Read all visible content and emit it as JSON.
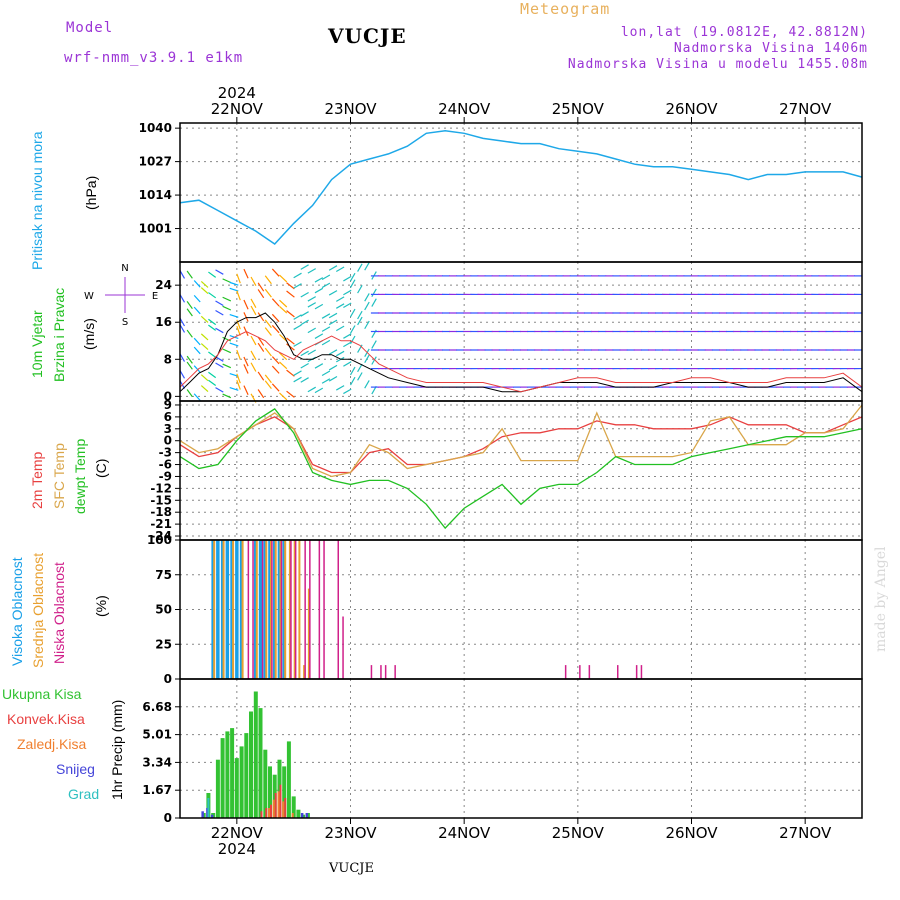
{
  "header": {
    "model_label": "Model",
    "model_name": "wrf-nmm_v3.9.1  e1km",
    "station": "VUCJE",
    "meteogram": "Meteogram",
    "lonlat": "lon,lat (19.0812E, 42.8812N)",
    "elev": "Nadmorska Visina 1406m",
    "elev_model": "Nadmorska Visina u modelu 1455.08m",
    "footer_station": "VUCJE",
    "credit": "made by Angel"
  },
  "dates": [
    "22NOV",
    "23NOV",
    "24NOV",
    "25NOV",
    "26NOV",
    "27NOV"
  ],
  "year": "2024",
  "panels": {
    "pressure": {
      "label": "Pritisak na nivou mora",
      "unit": "(hPa)",
      "ticks": [
        "1040",
        "1027",
        "1014",
        "1001"
      ]
    },
    "wind": {
      "label1": "10m Vjetar",
      "label2": "Brzina i Pravac",
      "unit": "(m/s)",
      "ticks": [
        "24",
        "16",
        "8",
        "0"
      ],
      "compass": [
        "N",
        "W",
        "E",
        "S"
      ]
    },
    "temp": {
      "label1": "2m Temp",
      "label2": "SFC Temp",
      "label3": "dewpt Temp",
      "unit": "(C)",
      "ticks": [
        "9",
        "6",
        "3",
        "0",
        "-3",
        "-6",
        "-9",
        "-12",
        "-15",
        "-18",
        "-21",
        "-24"
      ]
    },
    "cloud": {
      "label1": "Visoka Oblacnost",
      "label2": "Srednja Oblacnost",
      "label3": "Niska Oblacnost",
      "unit": "(%)",
      "ticks": [
        "100",
        "75",
        "50",
        "25",
        "0"
      ]
    },
    "precip": {
      "label": "1hr Precip (mm)",
      "ticks": [
        "6.68",
        "5.01",
        "3.34",
        "1.67",
        "0"
      ],
      "legend": [
        "Ukupna Kisa",
        "Konvek.Kisa",
        "Zaledj.Kisa",
        "Snijeg",
        "Grad"
      ]
    }
  },
  "colors": {
    "pressure": "#1ea8e8",
    "temp2m": "#e84040",
    "sfc": "#d9a64a",
    "dewpt": "#22c022",
    "cloud_high": "#1aa0e8",
    "cloud_mid": "#e8a030",
    "cloud_low": "#d0208a",
    "rain": "#33c233",
    "conv": "#e84040",
    "frz": "#f08030",
    "snow": "#4444d8",
    "grad": "#2ec0c0",
    "purple": "#9b35d6"
  },
  "chart_data": [
    {
      "type": "line",
      "title": "Pritisak na nivou mora",
      "ylabel": "(hPa)",
      "ylim": [
        988,
        1042
      ],
      "x": [
        0,
        4,
        8,
        12,
        16,
        20,
        24,
        28,
        32,
        36,
        40,
        44,
        48,
        52,
        56,
        60,
        64,
        68,
        72,
        76,
        80,
        84,
        88,
        92,
        96,
        100,
        104,
        108,
        112,
        116,
        120,
        124,
        128,
        132,
        136,
        140,
        144
      ],
      "series": [
        {
          "values": [
            1011,
            1012,
            1008,
            1004,
            1000,
            995,
            1003,
            1010,
            1020,
            1026,
            1028,
            1030,
            1033,
            1038,
            1039,
            1038,
            1036,
            1035,
            1034,
            1034,
            1032,
            1031,
            1030,
            1028,
            1026,
            1025,
            1025,
            1024,
            1023,
            1022,
            1020,
            1022,
            1022,
            1023,
            1023,
            1023,
            1021
          ]
        }
      ]
    },
    {
      "type": "line",
      "title": "10m Vjetar Brzina i Pravac",
      "ylabel": "(m/s)",
      "ylim": [
        -1,
        29
      ],
      "x": [
        0,
        2,
        4,
        6,
        8,
        10,
        12,
        14,
        16,
        18,
        20,
        22,
        24,
        26,
        28,
        30,
        32,
        34,
        36,
        38,
        40,
        42,
        44,
        48,
        52,
        56,
        60,
        64,
        68,
        72,
        76,
        80,
        84,
        88,
        92,
        96,
        100,
        104,
        108,
        112,
        116,
        120,
        124,
        128,
        132,
        136,
        140,
        144
      ],
      "series": [
        {
          "name": "speed",
          "values": [
            1,
            3,
            5,
            6,
            9,
            14,
            16,
            17,
            17,
            18,
            16,
            13,
            9,
            8,
            8,
            9,
            9,
            8,
            8,
            7,
            6,
            5,
            4,
            3,
            2,
            2,
            2,
            2,
            1,
            1,
            2,
            3,
            3,
            3,
            2,
            2,
            2,
            3,
            3,
            3,
            3,
            2,
            2,
            3,
            3,
            3,
            4,
            1
          ]
        },
        {
          "name": "gust",
          "values": [
            2,
            4,
            6,
            7,
            9,
            12,
            13,
            14,
            13,
            12,
            10,
            9,
            8,
            10,
            11,
            12,
            13,
            12,
            12,
            11,
            9,
            7,
            6,
            4,
            3,
            3,
            3,
            3,
            2,
            1,
            2,
            3,
            4,
            4,
            3,
            3,
            3,
            3,
            4,
            4,
            3,
            3,
            3,
            4,
            4,
            4,
            5,
            2
          ]
        }
      ]
    },
    {
      "type": "line",
      "title": "2m Temp / SFC Temp / dewpt Temp",
      "ylabel": "(C)",
      "ylim": [
        -25,
        10
      ],
      "x": [
        0,
        4,
        8,
        12,
        16,
        20,
        24,
        28,
        32,
        36,
        40,
        44,
        48,
        52,
        56,
        60,
        64,
        68,
        72,
        76,
        80,
        84,
        88,
        92,
        96,
        100,
        104,
        108,
        112,
        116,
        120,
        124,
        128,
        132,
        136,
        140,
        144
      ],
      "series": [
        {
          "name": "2m Temp",
          "values": [
            -1,
            -4,
            -3,
            1,
            4,
            6,
            3,
            -6,
            -8,
            -8,
            -3,
            -2,
            -6,
            -6,
            -5,
            -4,
            -2,
            1,
            2,
            2,
            3,
            3,
            5,
            4,
            4,
            3,
            3,
            3,
            4,
            6,
            4,
            4,
            4,
            2,
            2,
            4,
            6
          ]
        },
        {
          "name": "SFC Temp",
          "values": [
            0,
            -3,
            -2,
            1,
            4,
            7,
            3,
            -7,
            -9,
            -8,
            -1,
            -3,
            -7,
            -6,
            -5,
            -4,
            -3,
            3,
            -5,
            -5,
            -5,
            -5,
            7,
            -4,
            -4,
            -4,
            -4,
            -3,
            5,
            6,
            -1,
            -1,
            -1,
            2,
            2,
            3,
            9
          ]
        },
        {
          "name": "dewpt Temp",
          "values": [
            -4,
            -7,
            -6,
            0,
            5,
            8,
            2,
            -8,
            -10,
            -11,
            -10,
            -10,
            -12,
            -16,
            -22,
            -17,
            -14,
            -11,
            -16,
            -12,
            -11,
            -11,
            -8,
            -4,
            -6,
            -6,
            -6,
            -4,
            -3,
            -2,
            -1,
            0,
            1,
            1,
            1,
            2,
            3
          ]
        }
      ]
    },
    {
      "type": "bar",
      "title": "Oblacnost",
      "ylabel": "(%)",
      "ylim": [
        0,
        100
      ],
      "series": [
        {
          "name": "Visoka Oblacnost",
          "x": [
            7,
            8,
            9,
            10,
            11,
            12,
            13,
            14,
            15,
            16,
            17,
            18,
            19,
            20,
            21,
            22
          ],
          "values": [
            100,
            100,
            100,
            100,
            100,
            100,
            100,
            0,
            0,
            100,
            100,
            100,
            100,
            100,
            100,
            100
          ]
        },
        {
          "name": "Srednja Oblacnost",
          "x": [
            7,
            9,
            11,
            13,
            16,
            18,
            19,
            20,
            21,
            22,
            23,
            24,
            25,
            26,
            27
          ],
          "values": [
            100,
            100,
            100,
            100,
            100,
            100,
            100,
            100,
            100,
            100,
            100,
            100,
            100,
            10,
            65
          ]
        },
        {
          "name": "Niska Oblacnost",
          "x": [
            14,
            15,
            17,
            19,
            21,
            23,
            24,
            26,
            27,
            29,
            30,
            33,
            34,
            38,
            40,
            42,
            43,
            45,
            81,
            84,
            86,
            88,
            90,
            92,
            93,
            96,
            97
          ],
          "values": [
            100,
            100,
            100,
            100,
            100,
            100,
            100,
            100,
            100,
            100,
            100,
            100,
            45,
            5,
            10,
            10,
            10,
            10,
            10,
            10,
            10,
            8,
            5,
            10,
            5,
            10,
            10
          ]
        }
      ]
    },
    {
      "type": "bar",
      "title": "1hr Precip",
      "ylabel": "1hr Precip (mm)",
      "ylim": [
        0,
        8.35
      ],
      "series": [
        {
          "name": "Ukupna Kisa",
          "x": [
            5,
            6,
            7,
            8,
            9,
            10,
            11,
            12,
            13,
            14,
            15,
            16,
            17,
            18,
            19,
            20,
            21,
            22,
            23,
            24,
            25,
            26,
            27
          ],
          "values": [
            0.3,
            1.5,
            0.3,
            3.5,
            4.8,
            5.2,
            5.4,
            3.6,
            4.3,
            5.1,
            6.4,
            7.6,
            6.6,
            4.1,
            3.1,
            2.6,
            3.5,
            3.1,
            4.6,
            1.3,
            0.5,
            0.2,
            0.3
          ]
        },
        {
          "name": "Konvek.Kisa",
          "x": [
            17,
            18,
            19,
            20,
            21,
            22
          ],
          "values": [
            0.4,
            0.6,
            0.8,
            1.5,
            2.0,
            1.2
          ]
        },
        {
          "name": "Zaledj.Kisa",
          "x": [
            19,
            20,
            21,
            22,
            24
          ],
          "values": [
            0.6,
            1.1,
            1.6,
            1.0,
            0.3
          ]
        },
        {
          "name": "Snijeg",
          "x": [
            5,
            6,
            7,
            26,
            27
          ],
          "values": [
            0.4,
            0.6,
            0.2,
            0.3,
            0.3
          ]
        },
        {
          "name": "Grad",
          "x": [
            6
          ],
          "values": [
            1.2
          ]
        }
      ]
    }
  ]
}
